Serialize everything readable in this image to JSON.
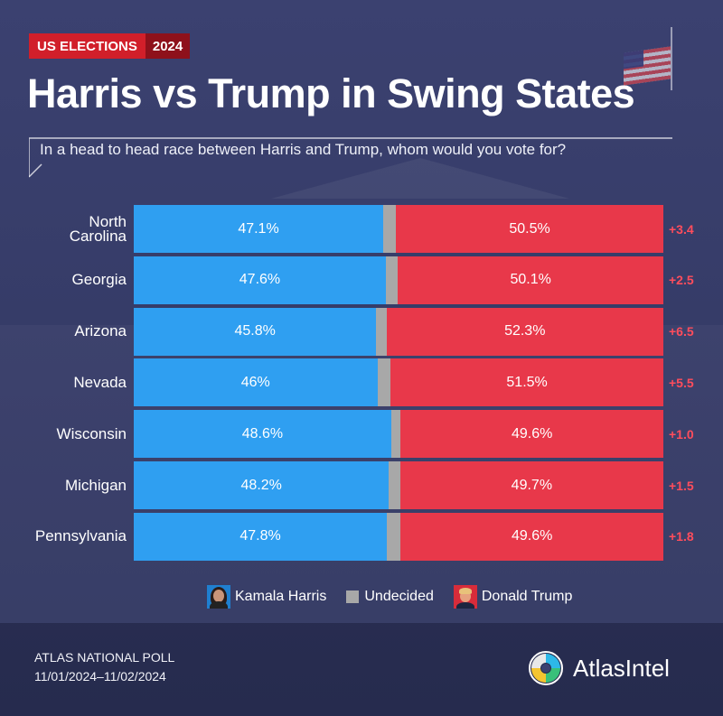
{
  "header": {
    "tag_left": "US ELECTIONS",
    "tag_right": "2024",
    "title": "Harris vs Trump in Swing States",
    "question": "In a head to head race between Harris and Trump, whom would you vote for?"
  },
  "chart_data": {
    "type": "bar",
    "orientation": "horizontal-stacked",
    "categories": [
      "North Carolina",
      "Georgia",
      "Arizona",
      "Nevada",
      "Wisconsin",
      "Michigan",
      "Pennsylvania"
    ],
    "series": [
      {
        "name": "Kamala Harris",
        "values": [
          47.1,
          47.6,
          45.8,
          46,
          48.6,
          48.2,
          47.8
        ],
        "labels": [
          "47.1%",
          "47.6%",
          "45.8%",
          "46%",
          "48.6%",
          "48.2%",
          "47.8%"
        ],
        "color": "#2f9ff1"
      },
      {
        "name": "Undecided",
        "values": [
          2.4,
          2.3,
          1.9,
          2.5,
          1.8,
          2.1,
          2.6
        ],
        "color": "#a8a8a8"
      },
      {
        "name": "Donald Trump",
        "values": [
          50.5,
          50.1,
          52.3,
          51.5,
          49.6,
          49.7,
          49.6
        ],
        "labels": [
          "50.5%",
          "50.1%",
          "52.3%",
          "51.5%",
          "49.6%",
          "49.7%",
          "49.6%"
        ],
        "color": "#e8384a"
      }
    ],
    "margins": [
      "+3.4",
      "+2.5",
      "+6.5",
      "+5.5",
      "+1.0",
      "+1.5",
      "+1.8"
    ],
    "xlim": [
      0,
      100
    ],
    "legend_placement": "bottom"
  },
  "legend": {
    "harris": "Kamala Harris",
    "undecided": "Undecided",
    "trump": "Donald Trump"
  },
  "footer": {
    "poll_name": "ATLAS NATIONAL POLL",
    "dates": "11/01/2024–11/02/2024",
    "brand": "AtlasIntel"
  },
  "colors": {
    "harris": "#2f9ff1",
    "undecided": "#a8a8a8",
    "trump": "#e8384a",
    "margin_text": "#ff4d5c",
    "tag_red": "#d11f2a",
    "tag_dark_red": "#8e111b",
    "background": "#3b4170"
  }
}
